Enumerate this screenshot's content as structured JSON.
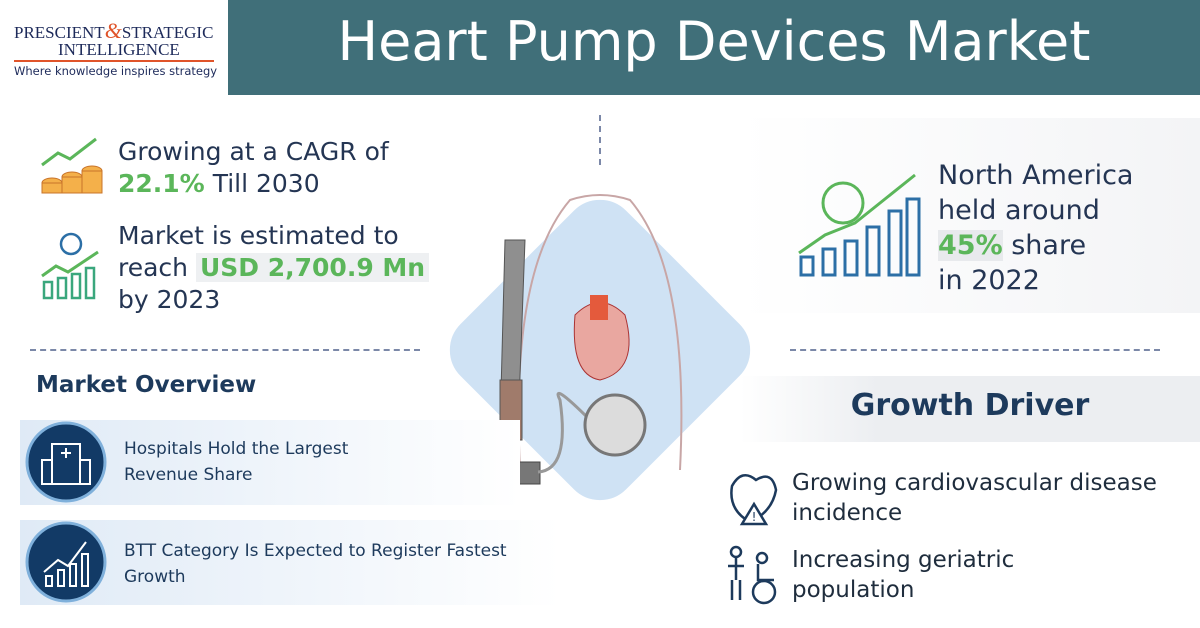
{
  "logo": {
    "name_left": "PRESCIENT",
    "ampersand": "&",
    "name_right": "STRATEGIC",
    "name_second": "INTELLIGENCE",
    "tagline": "Where knowledge inspires strategy"
  },
  "title": "Heart Pump Devices Market",
  "stats": {
    "cagr": {
      "line1": "Growing at a CAGR of",
      "highlight": "22.1%",
      "rest": "Till 2030"
    },
    "market": {
      "line1": "Market is estimated to",
      "line2": "reach",
      "highlight": "USD 2,700.9 Mn",
      "line3": "by 2023"
    },
    "region": {
      "line1": "North America",
      "line2": "held around",
      "highlight": "45%",
      "rest": "share",
      "line4": "in 2022"
    }
  },
  "overview": {
    "heading": "Market Overview",
    "items": [
      "Hospitals Hold the Largest Revenue Share",
      "BTT Category Is Expected to Register Fastest Growth"
    ]
  },
  "drivers": {
    "heading": "Growth Driver",
    "items": [
      "Growing cardiovascular disease incidence",
      "Increasing geriatric population"
    ]
  }
}
